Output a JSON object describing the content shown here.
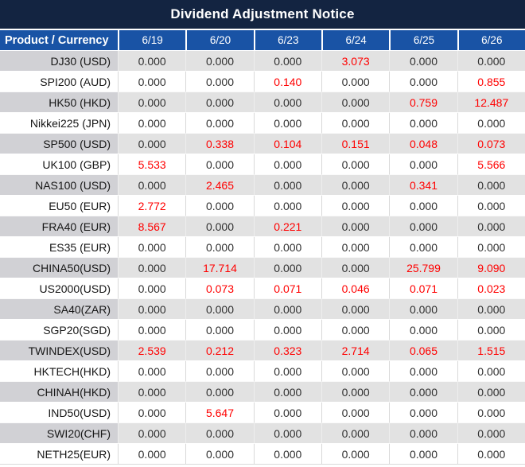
{
  "title_bar": {
    "title": "Dividend Adjustment Notice"
  },
  "colors": {
    "title_bg": "#132441",
    "header_bg": "#1953a5",
    "header_text": "#ffffff",
    "stripe_product_bg": "#d1d1d5",
    "stripe_value_bg": "#e2e2e2",
    "value_text": "#303030",
    "highlight_text": "#ff0000"
  },
  "chart_data": {
    "type": "table",
    "title": "Dividend Adjustment Notice",
    "columns": [
      "Product / Currency",
      "6/19",
      "6/20",
      "6/23",
      "6/24",
      "6/25",
      "6/26"
    ],
    "zero_value": "0.000",
    "rows": [
      {
        "product": "DJ30 (USD)",
        "values": [
          "0.000",
          "0.000",
          "0.000",
          "3.073",
          "0.000",
          "0.000"
        ]
      },
      {
        "product": "SPI200 (AUD)",
        "values": [
          "0.000",
          "0.000",
          "0.140",
          "0.000",
          "0.000",
          "0.855"
        ]
      },
      {
        "product": "HK50 (HKD)",
        "values": [
          "0.000",
          "0.000",
          "0.000",
          "0.000",
          "0.759",
          "12.487"
        ]
      },
      {
        "product": "Nikkei225 (JPN)",
        "values": [
          "0.000",
          "0.000",
          "0.000",
          "0.000",
          "0.000",
          "0.000"
        ]
      },
      {
        "product": "SP500 (USD)",
        "values": [
          "0.000",
          "0.338",
          "0.104",
          "0.151",
          "0.048",
          "0.073"
        ]
      },
      {
        "product": "UK100 (GBP)",
        "values": [
          "5.533",
          "0.000",
          "0.000",
          "0.000",
          "0.000",
          "5.566"
        ]
      },
      {
        "product": "NAS100 (USD)",
        "values": [
          "0.000",
          "2.465",
          "0.000",
          "0.000",
          "0.341",
          "0.000"
        ]
      },
      {
        "product": "EU50 (EUR)",
        "values": [
          "2.772",
          "0.000",
          "0.000",
          "0.000",
          "0.000",
          "0.000"
        ]
      },
      {
        "product": "FRA40 (EUR)",
        "values": [
          "8.567",
          "0.000",
          "0.221",
          "0.000",
          "0.000",
          "0.000"
        ]
      },
      {
        "product": "ES35 (EUR)",
        "values": [
          "0.000",
          "0.000",
          "0.000",
          "0.000",
          "0.000",
          "0.000"
        ]
      },
      {
        "product": "CHINA50(USD)",
        "values": [
          "0.000",
          "17.714",
          "0.000",
          "0.000",
          "25.799",
          "9.090"
        ]
      },
      {
        "product": "US2000(USD)",
        "values": [
          "0.000",
          "0.073",
          "0.071",
          "0.046",
          "0.071",
          "0.023"
        ]
      },
      {
        "product": "SA40(ZAR)",
        "values": [
          "0.000",
          "0.000",
          "0.000",
          "0.000",
          "0.000",
          "0.000"
        ]
      },
      {
        "product": "SGP20(SGD)",
        "values": [
          "0.000",
          "0.000",
          "0.000",
          "0.000",
          "0.000",
          "0.000"
        ]
      },
      {
        "product": "TWINDEX(USD)",
        "values": [
          "2.539",
          "0.212",
          "0.323",
          "2.714",
          "0.065",
          "1.515"
        ]
      },
      {
        "product": "HKTECH(HKD)",
        "values": [
          "0.000",
          "0.000",
          "0.000",
          "0.000",
          "0.000",
          "0.000"
        ]
      },
      {
        "product": "CHINAH(HKD)",
        "values": [
          "0.000",
          "0.000",
          "0.000",
          "0.000",
          "0.000",
          "0.000"
        ]
      },
      {
        "product": "IND50(USD)",
        "values": [
          "0.000",
          "5.647",
          "0.000",
          "0.000",
          "0.000",
          "0.000"
        ]
      },
      {
        "product": "SWI20(CHF)",
        "values": [
          "0.000",
          "0.000",
          "0.000",
          "0.000",
          "0.000",
          "0.000"
        ]
      },
      {
        "product": "NETH25(EUR)",
        "values": [
          "0.000",
          "0.000",
          "0.000",
          "0.000",
          "0.000",
          "0.000"
        ]
      }
    ]
  }
}
